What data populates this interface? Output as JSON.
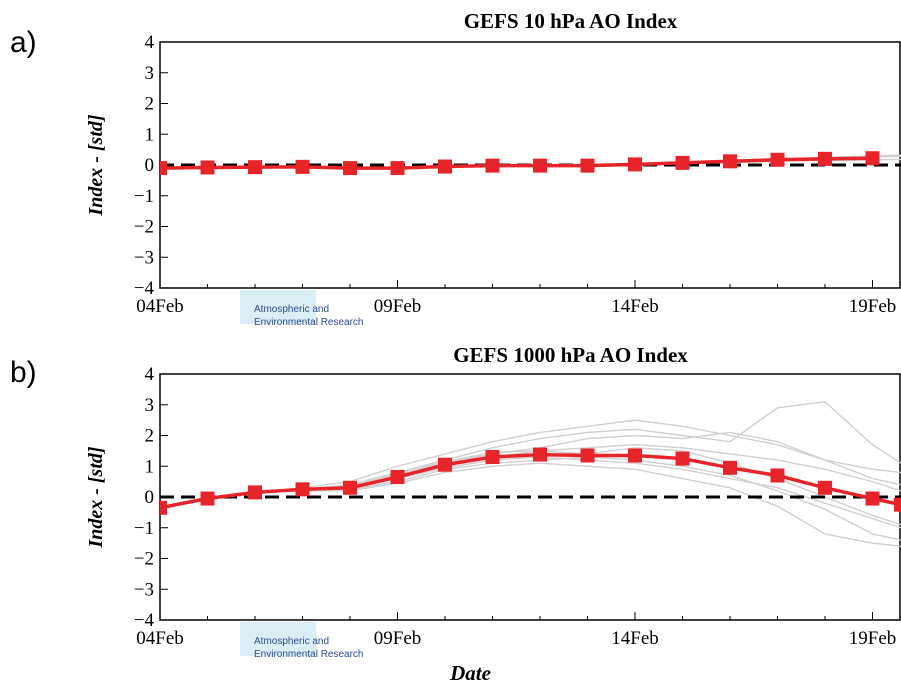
{
  "chart_data": [
    {
      "panel_label": "a)",
      "type": "line",
      "title": "GEFS 10 hPa AO Index",
      "xlabel": "",
      "ylabel": "Index - [std]",
      "ylim": [
        -4,
        4
      ],
      "yticks": [
        "4",
        "3",
        "2",
        "1",
        "0",
        "−1",
        "−2",
        "−3",
        "−4"
      ],
      "xlim": [
        0,
        15.6
      ],
      "xticks": [
        {
          "x": 0,
          "label": "04Feb"
        },
        {
          "x": 5,
          "label": "09Feb"
        },
        {
          "x": 10,
          "label": "14Feb"
        },
        {
          "x": 15,
          "label": "19Feb"
        }
      ],
      "zero_line": {
        "style": "dashed",
        "color": "#000000"
      },
      "logo_text": [
        "Atmospheric and",
        "Environmental Research"
      ],
      "series": [
        {
          "role": "mean",
          "color": "#e8232a",
          "marker": "square",
          "x": [
            0,
            1,
            2,
            3,
            4,
            5,
            6,
            7,
            8,
            9,
            10,
            11,
            12,
            13,
            14,
            15
          ],
          "values": [
            -0.1,
            -0.08,
            -0.07,
            -0.06,
            -0.1,
            -0.1,
            -0.05,
            -0.02,
            -0.02,
            -0.02,
            0.02,
            0.07,
            0.12,
            0.17,
            0.2,
            0.22
          ]
        },
        {
          "role": "members",
          "color": "#cfcfcf",
          "x": [
            0,
            1,
            2,
            3,
            4,
            5,
            6,
            7,
            8,
            9,
            10,
            11,
            12,
            13,
            14,
            15,
            15.6
          ],
          "members": [
            [
              -0.1,
              -0.08,
              -0.07,
              -0.06,
              -0.1,
              -0.1,
              -0.05,
              -0.02,
              -0.01,
              0.0,
              0.05,
              0.1,
              0.15,
              0.2,
              0.25,
              0.3,
              0.32
            ],
            [
              -0.1,
              -0.08,
              -0.07,
              -0.06,
              -0.1,
              -0.1,
              -0.05,
              -0.03,
              -0.03,
              -0.04,
              0.0,
              0.04,
              0.08,
              0.12,
              0.15,
              0.17,
              0.18
            ],
            [
              -0.1,
              -0.08,
              -0.07,
              -0.06,
              -0.1,
              -0.1,
              -0.05,
              -0.02,
              -0.02,
              -0.01,
              0.03,
              0.08,
              0.13,
              0.19,
              0.23,
              0.27,
              0.28
            ]
          ]
        }
      ]
    },
    {
      "panel_label": "b)",
      "type": "line",
      "title": "GEFS 1000 hPa AO Index",
      "xlabel": "Date",
      "ylabel": "Index - [std]",
      "ylim": [
        -4,
        4
      ],
      "yticks": [
        "4",
        "3",
        "2",
        "1",
        "0",
        "−1",
        "−2",
        "−3",
        "−4"
      ],
      "xlim": [
        0,
        15.6
      ],
      "xticks": [
        {
          "x": 0,
          "label": "04Feb"
        },
        {
          "x": 5,
          "label": "09Feb"
        },
        {
          "x": 10,
          "label": "14Feb"
        },
        {
          "x": 15,
          "label": "19Feb"
        }
      ],
      "zero_line": {
        "style": "dashed",
        "color": "#000000"
      },
      "logo_text": [
        "Atmospheric and",
        "Environmental Research"
      ],
      "series": [
        {
          "role": "mean",
          "color": "#e8232a",
          "marker": "square",
          "x": [
            0,
            1,
            2,
            3,
            4,
            5,
            6,
            7,
            8,
            9,
            10,
            11,
            12,
            13,
            14,
            15,
            15.6
          ],
          "values": [
            -0.35,
            -0.05,
            0.15,
            0.25,
            0.3,
            0.65,
            1.05,
            1.3,
            1.38,
            1.35,
            1.35,
            1.25,
            0.95,
            0.7,
            0.3,
            -0.05,
            -0.25
          ]
        },
        {
          "role": "members",
          "color": "#cfcfcf",
          "x": [
            0,
            1,
            2,
            3,
            4,
            5,
            6,
            7,
            8,
            9,
            10,
            11,
            12,
            13,
            14,
            15,
            15.6
          ],
          "members": [
            [
              -0.35,
              -0.05,
              0.15,
              0.3,
              0.5,
              1.0,
              1.4,
              1.8,
              2.1,
              2.3,
              2.5,
              2.3,
              2.0,
              1.7,
              1.2,
              0.6,
              0.4
            ],
            [
              -0.35,
              -0.05,
              0.15,
              0.25,
              0.4,
              0.8,
              1.2,
              1.6,
              1.9,
              2.1,
              2.2,
              2.0,
              1.8,
              2.9,
              3.1,
              1.7,
              1.1
            ],
            [
              -0.35,
              -0.05,
              0.15,
              0.25,
              0.3,
              0.6,
              1.0,
              1.3,
              1.5,
              1.6,
              1.7,
              1.6,
              1.4,
              1.2,
              0.9,
              0.5,
              0.2
            ],
            [
              -0.35,
              -0.05,
              0.15,
              0.2,
              0.25,
              0.5,
              0.9,
              1.1,
              1.2,
              1.3,
              1.2,
              1.0,
              0.7,
              0.2,
              -0.4,
              -1.2,
              -1.4
            ],
            [
              -0.35,
              -0.05,
              0.15,
              0.25,
              0.3,
              0.7,
              1.1,
              1.4,
              1.6,
              1.9,
              2.0,
              1.9,
              2.1,
              1.8,
              1.2,
              0.9,
              0.8
            ],
            [
              -0.35,
              -0.05,
              0.15,
              0.2,
              0.2,
              0.45,
              0.8,
              1.0,
              1.1,
              1.0,
              0.9,
              0.6,
              0.3,
              -0.3,
              -1.2,
              -1.5,
              -1.6
            ],
            [
              -0.35,
              -0.05,
              0.15,
              0.25,
              0.35,
              0.75,
              1.15,
              1.45,
              1.5,
              1.4,
              1.6,
              1.5,
              1.1,
              0.6,
              0.0,
              -0.6,
              -0.9
            ],
            [
              -0.35,
              -0.05,
              0.15,
              0.25,
              0.3,
              0.6,
              0.95,
              1.2,
              1.3,
              1.2,
              1.1,
              0.9,
              0.6,
              0.3,
              -0.2,
              -0.7,
              -1.0
            ]
          ]
        }
      ]
    }
  ]
}
